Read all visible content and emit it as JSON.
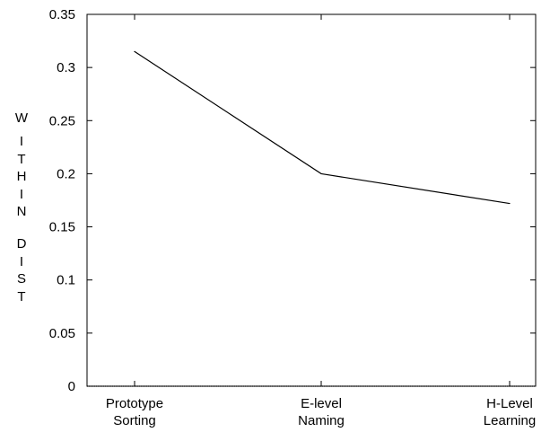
{
  "chart_data": {
    "type": "line",
    "categories": [
      [
        "Prototype",
        "Sorting"
      ],
      [
        "E-level",
        "Naming"
      ],
      [
        "H-Level",
        "Learning"
      ]
    ],
    "series": [
      {
        "values": [
          0.315,
          0.2,
          0.172
        ]
      }
    ],
    "ylabel_letters": [
      "W",
      "I",
      "T",
      "H",
      "I",
      "N",
      "",
      "D",
      "I",
      "S",
      "T"
    ],
    "ylim": [
      0,
      0.35
    ],
    "yticks": [
      "0",
      "0.05",
      "0.1",
      "0.15",
      "0.2",
      "0.25",
      "0.3",
      "0.35"
    ],
    "grid": false,
    "colors": {
      "line": "#000000",
      "axis": "#000000"
    }
  }
}
